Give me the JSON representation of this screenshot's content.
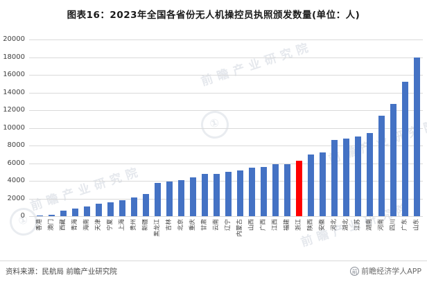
{
  "header": {
    "title": "图表16：2023年全国各省份无人机操控员执照颁发数量(单位：人)"
  },
  "chart_data": {
    "type": "bar",
    "title": "2023年全国各省份无人机操控员执照颁发数量",
    "unit": "人",
    "categories": [
      "香港",
      "澳门",
      "西藏",
      "青海",
      "海南",
      "天津",
      "宁夏",
      "上海",
      "贵州",
      "新疆",
      "黑龙江",
      "吉林",
      "北京",
      "重庆",
      "甘肃",
      "云南",
      "辽宁",
      "内蒙古",
      "山西",
      "广西",
      "江西",
      "福建",
      "浙江",
      "陕西",
      "安徽",
      "河北",
      "湖北",
      "江苏",
      "湖南",
      "河南",
      "四川",
      "广东",
      "山东"
    ],
    "values": [
      30,
      130,
      600,
      900,
      1100,
      1400,
      1600,
      1800,
      2100,
      2500,
      3800,
      3900,
      4100,
      4400,
      4800,
      4800,
      5000,
      5200,
      5500,
      5600,
      5900,
      5900,
      6300,
      7000,
      7200,
      8600,
      8800,
      9000,
      9400,
      11400,
      12700,
      15200,
      18000
    ],
    "highlight": {
      "category": "浙江",
      "color": "#ff0000"
    },
    "bar_color": "#4472c4",
    "grid": true,
    "legend": "none",
    "xlabel": "",
    "ylabel": "",
    "ylim": [
      0,
      20000
    ],
    "yticks": [
      0,
      2000,
      4000,
      6000,
      8000,
      10000,
      12000,
      14000,
      16000,
      18000,
      20000
    ],
    "xlabel_rotation": 90
  },
  "footer": {
    "source": "资料来源：民航局 前瞻产业研究院",
    "brand": "前瞻经济学人APP",
    "brand_logo_glyph": "前"
  },
  "watermark": {
    "text": "前瞻产业研究院",
    "logo_glyph": "①"
  }
}
